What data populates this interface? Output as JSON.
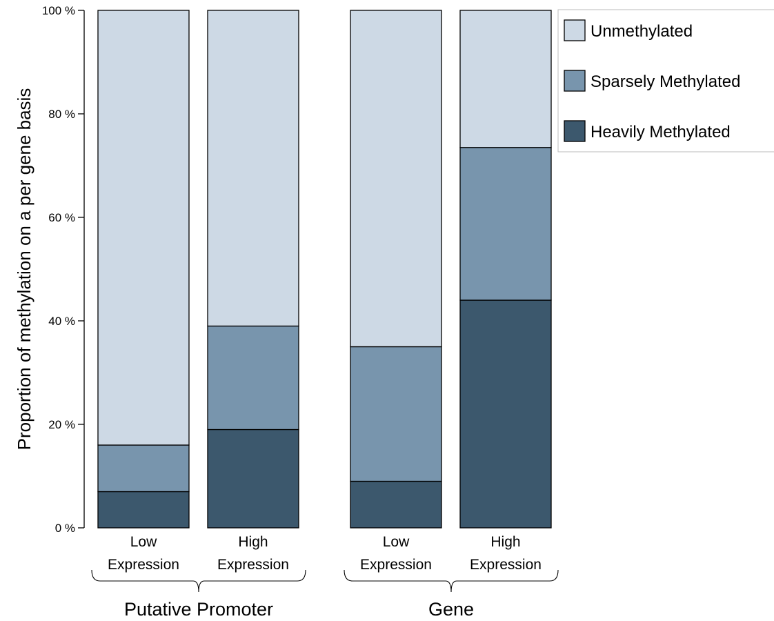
{
  "chart_data": {
    "type": "bar",
    "stacked": true,
    "title": "",
    "xlabel": "",
    "ylabel": "Proportion of methylation on a per gene basis",
    "ylim": [
      0,
      100
    ],
    "yticks": [
      0,
      20,
      40,
      60,
      80,
      100
    ],
    "ytick_labels": [
      "0 %",
      "20 %",
      "40 %",
      "60 %",
      "80 %",
      "100 %"
    ],
    "grid": false,
    "legend_position": "top-right",
    "groups": [
      {
        "name": "Putative Promoter",
        "categories": [
          "Low Expression",
          "High Expression"
        ]
      },
      {
        "name": "Gene",
        "categories": [
          "Low Expression",
          "High Expression"
        ]
      }
    ],
    "categories": [
      [
        "Low",
        "Expression"
      ],
      [
        "High",
        "Expression"
      ],
      [
        "Low",
        "Expression"
      ],
      [
        "High",
        "Expression"
      ]
    ],
    "series": [
      {
        "name": "Heavily Methylated",
        "color": "#3c586d",
        "values": [
          7,
          19,
          9,
          44
        ]
      },
      {
        "name": "Sparsely Methylated",
        "color": "#7895ad",
        "values": [
          9,
          20,
          26,
          29.5
        ]
      },
      {
        "name": "Unmethylated",
        "color": "#cdd9e5",
        "values": [
          84,
          61,
          65,
          26.5
        ]
      }
    ],
    "legend_order": [
      "Unmethylated",
      "Sparsely Methylated",
      "Heavily Methylated"
    ]
  }
}
